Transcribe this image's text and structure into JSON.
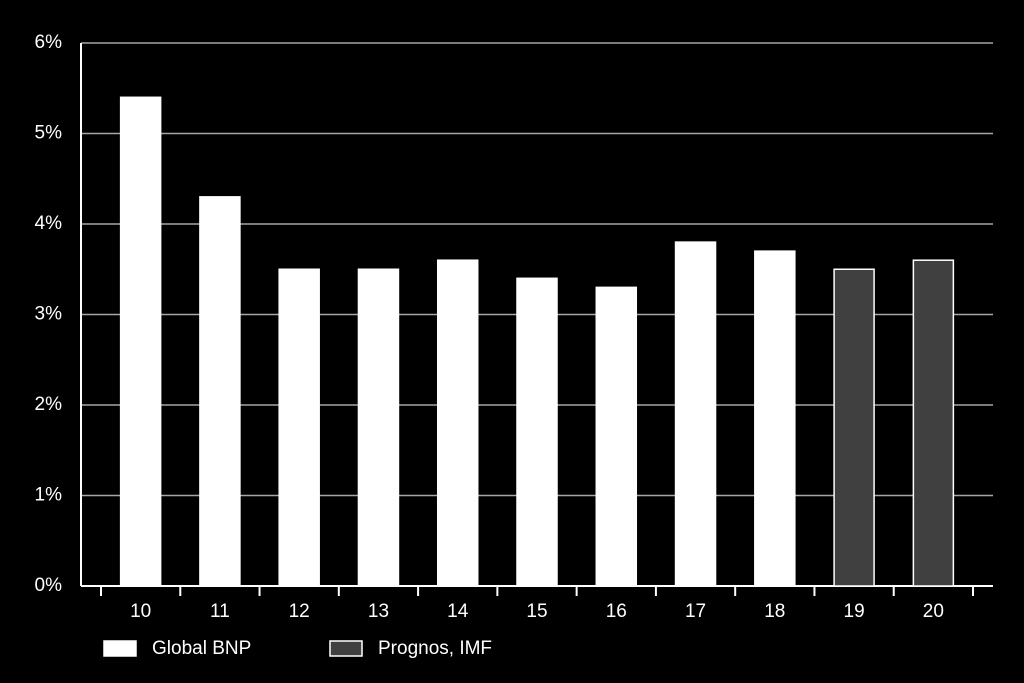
{
  "chart_data": {
    "type": "bar",
    "categories": [
      "10",
      "11",
      "12",
      "13",
      "14",
      "15",
      "16",
      "17",
      "18",
      "19",
      "20"
    ],
    "series": [
      {
        "name": "Global BNP",
        "color": "#ffffff",
        "values": [
          5.4,
          4.3,
          3.5,
          3.5,
          3.6,
          3.4,
          3.3,
          3.8,
          3.7,
          null,
          null
        ]
      },
      {
        "name": "Prognos, IMF",
        "color": "#404040",
        "values": [
          null,
          null,
          null,
          null,
          null,
          null,
          null,
          null,
          null,
          3.5,
          3.6
        ]
      }
    ],
    "edgecolor": "#ffffff",
    "ylim": [
      0,
      6
    ],
    "yticks": [
      {
        "value": 0,
        "label": "0%"
      },
      {
        "value": 1,
        "label": "1%"
      },
      {
        "value": 2,
        "label": "2%"
      },
      {
        "value": 3,
        "label": "3%"
      },
      {
        "value": 4,
        "label": "4%"
      },
      {
        "value": 5,
        "label": "5%"
      },
      {
        "value": 6,
        "label": "6%"
      }
    ],
    "grid": true,
    "legend": "bottom-left"
  }
}
